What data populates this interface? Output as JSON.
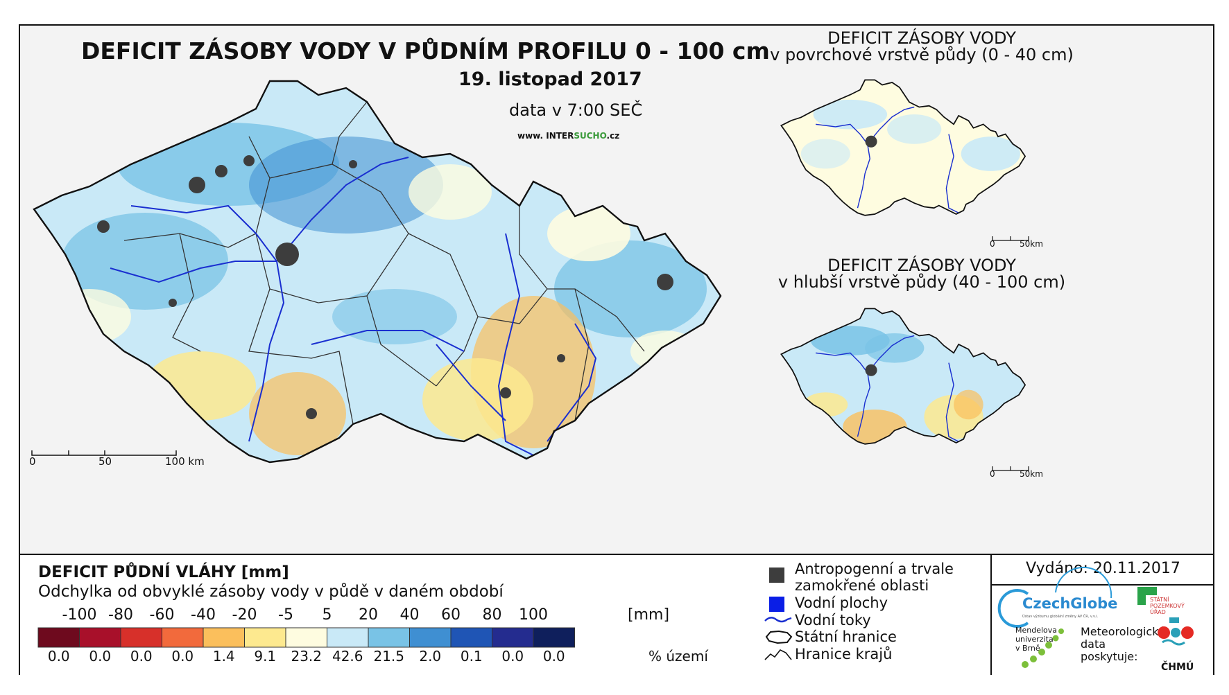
{
  "main_map": {
    "title": "DEFICIT ZÁSOBY VODY V PŮDNÍM PROFILU 0 - 100 cm",
    "date": "19. listopad 2017",
    "data_time": "data v 7:00 SEČ",
    "website_prefix": "www. INTER",
    "website_brand": "SUCHO",
    "website_suffix": ".cz",
    "scale_labels": [
      "0",
      "50",
      "100 km"
    ]
  },
  "inset_top": {
    "title_line1": "DEFICIT ZÁSOBY VODY",
    "title_line2": "v povrchové vrstvě půdy (0 - 40 cm)",
    "scale_labels": [
      "0",
      "50km"
    ]
  },
  "inset_bottom": {
    "title_line1": "DEFICIT ZÁSOBY VODY",
    "title_line2": "v hlubší vrstvě půdy (40 - 100 cm)",
    "scale_labels": [
      "0",
      "50km"
    ]
  },
  "legend": {
    "title": "DEFICIT PŮDNÍ VLÁHY [mm]",
    "subtitle": "Odchylka od obvyklé zásoby vody v půdě v daném období",
    "ticks": [
      "-100",
      "-80",
      "-60",
      "-40",
      "-20",
      "-5",
      "5",
      "20",
      "40",
      "60",
      "80",
      "100"
    ],
    "unit": "[mm]",
    "colors": [
      "#6e0a1e",
      "#a8102a",
      "#d7302a",
      "#f26a3c",
      "#fbbf5c",
      "#fde98f",
      "#fefce0",
      "#c9e9f7",
      "#79c3e6",
      "#3f8fd2",
      "#1f55b5",
      "#242c8f",
      "#0f1f5c"
    ],
    "percentages": [
      "0.0",
      "0.0",
      "0.0",
      "0.0",
      "1.4",
      "9.1",
      "23.2",
      "42.6",
      "21.5",
      "2.0",
      "0.1",
      "0.0",
      "0.0"
    ],
    "pct_unit": "% území"
  },
  "symbols": {
    "anthropogenic_line1": "Antropogenní a trvale",
    "anthropogenic_line2": "zamokřené oblasti",
    "water_areas": "Vodní plochy",
    "rivers": "Vodní toky",
    "state_border": "Státní hranice",
    "regional_border": "Hranice krajů",
    "colors": {
      "anthropogenic": "#3d3d3d",
      "water": "#0a1ee6",
      "river": "#1a2fd0"
    }
  },
  "issued": "Vydáno: 20.11.2017",
  "logos": {
    "czechglobe": "CzechGlobe",
    "czechglobe_sub": "Ústav výzkumu globální změny AV ČR, v.v.i.",
    "spu_line1": "STÁTNÍ",
    "spu_line2": "POZEMKOVÝ",
    "spu_line3": "ÚŘAD",
    "mendelu_line1": "Mendelova",
    "mendelu_line2": "univerzita",
    "mendelu_line3": "v Brně",
    "met_line1": "Meteorologická",
    "met_line2": "data",
    "met_line3": "poskytuje:",
    "chmu": "ČHMÚ"
  }
}
